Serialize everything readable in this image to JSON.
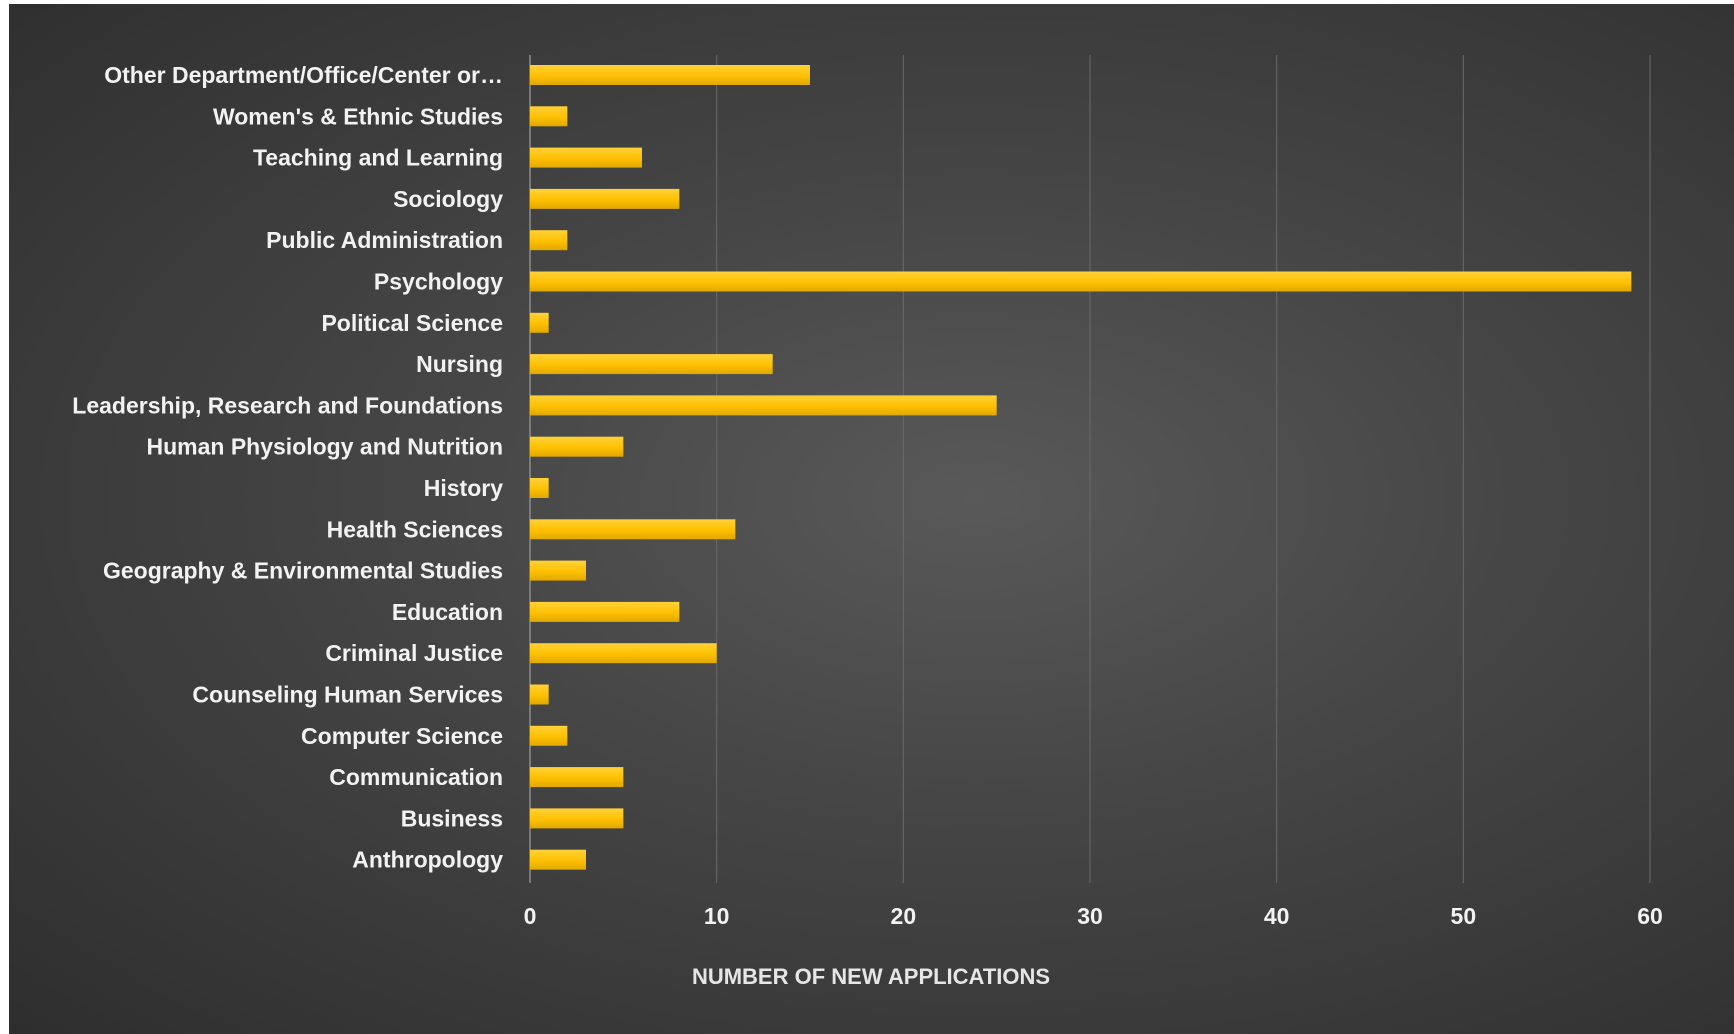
{
  "chart_data": {
    "type": "bar",
    "orientation": "horizontal",
    "title": "",
    "xlabel": "NUMBER OF NEW APPLICATIONS",
    "ylabel": "",
    "xlim": [
      0,
      60
    ],
    "x_ticks": [
      0,
      10,
      20,
      30,
      40,
      50,
      60
    ],
    "grid": "vertical gridlines",
    "legend": "none",
    "categories": [
      "Other Department/Office/Center or…",
      "Women's & Ethnic Studies",
      "Teaching and Learning",
      "Sociology",
      "Public Administration",
      "Psychology",
      "Political Science",
      "Nursing",
      "Leadership, Research and Foundations",
      "Human Physiology and Nutrition",
      "History",
      "Health Sciences",
      "Geography & Environmental Studies",
      "Education",
      "Criminal Justice",
      "Counseling Human Services",
      "Computer Science",
      "Communication",
      "Business",
      "Anthropology"
    ],
    "values": [
      15,
      2,
      6,
      8,
      2,
      59,
      1,
      13,
      25,
      5,
      1,
      11,
      3,
      8,
      10,
      1,
      2,
      5,
      5,
      3
    ],
    "colors": {
      "bar": "#ffc000",
      "background": "#404040",
      "gridline": "#6a6a6a",
      "text": "#f2f2f2"
    }
  }
}
